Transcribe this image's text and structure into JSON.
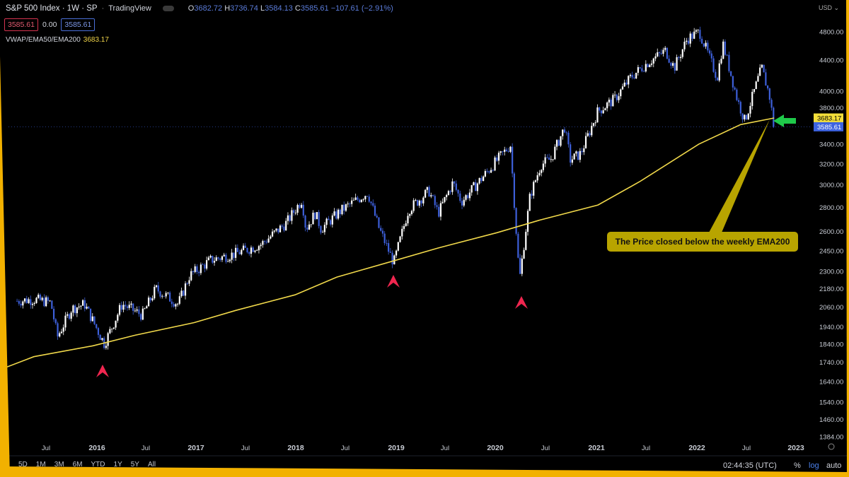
{
  "header": {
    "symbol": "S&P 500 Index",
    "interval": "1W",
    "exchange": "SP",
    "source": "TradingView",
    "ohlc": {
      "open_label": "O",
      "open": "3682.72",
      "high_label": "H",
      "high": "3736.74",
      "low_label": "L",
      "low": "3584.13",
      "close_label": "C",
      "close": "3585.61",
      "change": "−107.61 (−2.91%)"
    },
    "sell_price": "3585.61",
    "spread": "0.00",
    "buy_price": "3585.61"
  },
  "indicator": {
    "name": "VWAP/EMA50/EMA200",
    "value": "3683.17"
  },
  "price_scale": {
    "currency": "USD",
    "ticks": [
      "4800.00",
      "4400.00",
      "4000.00",
      "3800.00",
      "3400.00",
      "3200.00",
      "3000.00",
      "2800.00",
      "2600.00",
      "2450.00",
      "2300.00",
      "2180.00",
      "2060.00",
      "1940.00",
      "1840.00",
      "1740.00",
      "1640.00",
      "1540.00",
      "1460.00",
      "1384.00"
    ],
    "ema_label": "3683.17",
    "last_price_label": "3585.61"
  },
  "time_axis": [
    "Jul",
    "2016",
    "Jul",
    "2017",
    "Jul",
    "2018",
    "Jul",
    "2019",
    "Jul",
    "2020",
    "Jul",
    "2021",
    "Jul",
    "2022",
    "Jul",
    "2023"
  ],
  "bottom_bar": {
    "timeframes": [
      "5D",
      "1M",
      "3M",
      "6M",
      "YTD",
      "1Y",
      "5Y",
      "All"
    ],
    "clock": "02:44:35 (UTC)",
    "percent": "%",
    "log": "log",
    "auto": "auto"
  },
  "annotation": {
    "text": "The Price closed below the weekly EMA200"
  },
  "colors": {
    "background": "#000000",
    "candle_up": "#ffffff",
    "candle_down": "#3d5fd9",
    "ema200": "#f0d84a",
    "annotation_bg": "#b8a400",
    "up_marker": "#f0264f",
    "current_arrow": "#1fc94a",
    "frame": "#f2b100"
  },
  "chart_data": {
    "type": "line",
    "scale": "log",
    "x_range": [
      "2015-03-01",
      "2023-02-15"
    ],
    "ylim": [
      1384,
      4900
    ],
    "series": [
      {
        "name": "S&P 500 Index",
        "x": [
          "2015-04-01",
          "2015-06-01",
          "2015-08-01",
          "2015-08-25",
          "2015-10-15",
          "2015-12-01",
          "2016-02-11",
          "2016-04-15",
          "2016-06-27",
          "2016-08-15",
          "2016-11-04",
          "2016-12-15",
          "2017-03-01",
          "2017-06-01",
          "2017-09-01",
          "2017-12-01",
          "2018-01-26",
          "2018-02-09",
          "2018-03-15",
          "2018-04-05",
          "2018-06-15",
          "2018-09-21",
          "2018-10-29",
          "2018-12-24",
          "2019-02-15",
          "2019-04-30",
          "2019-06-03",
          "2019-07-26",
          "2019-08-26",
          "2019-10-01",
          "2019-12-31",
          "2020-02-19",
          "2020-03-23",
          "2020-04-30",
          "2020-06-08",
          "2020-07-15",
          "2020-09-02",
          "2020-09-23",
          "2020-10-30",
          "2020-12-31",
          "2021-03-01",
          "2021-05-01",
          "2021-07-01",
          "2021-09-02",
          "2021-10-04",
          "2021-11-20",
          "2022-01-03",
          "2022-03-08",
          "2022-03-29",
          "2022-05-20",
          "2022-06-16",
          "2022-08-16",
          "2022-09-13",
          "2022-09-30"
        ],
        "y": [
          2100,
          2110,
          2090,
          1880,
          2050,
          2080,
          1840,
          2080,
          2010,
          2180,
          2080,
          2270,
          2380,
          2430,
          2500,
          2670,
          2870,
          2620,
          2750,
          2620,
          2770,
          2930,
          2640,
          2360,
          2780,
          2945,
          2750,
          3020,
          2850,
          2950,
          3230,
          3390,
          2240,
          2900,
          3190,
          3250,
          3580,
          3240,
          3300,
          3760,
          3900,
          4180,
          4370,
          4530,
          4300,
          4700,
          4800,
          4170,
          4630,
          3900,
          3650,
          4300,
          3950,
          3585.61
        ]
      },
      {
        "name": "EMA200",
        "x": [
          "2015-01-01",
          "2015-06-01",
          "2016-01-01",
          "2016-06-01",
          "2017-01-01",
          "2017-06-01",
          "2018-01-01",
          "2018-06-01",
          "2019-01-01",
          "2019-06-01",
          "2020-01-01",
          "2020-06-01",
          "2021-01-01",
          "2021-06-01",
          "2022-01-01",
          "2022-06-01",
          "2022-09-30"
        ],
        "y": [
          1685,
          1770,
          1830,
          1890,
          1965,
          2040,
          2140,
          2260,
          2380,
          2470,
          2590,
          2690,
          2820,
          3030,
          3400,
          3610,
          3683.17
        ]
      }
    ]
  }
}
